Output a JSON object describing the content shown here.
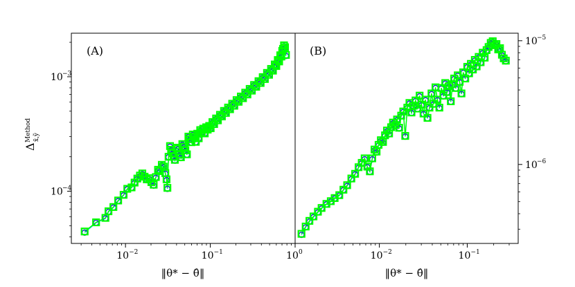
{
  "chart_data": [
    {
      "type": "line",
      "panel_label": "(A)",
      "xlabel": "‖θ* − θ̂‖",
      "ylabel": "Δ x̃,ỹ Method",
      "ylabel_main": "Δ",
      "ylabel_sup": "Method",
      "ylabel_sub": "x̃,ỹ",
      "xscale": "log",
      "yscale": "log",
      "xlim": [
        0.0023,
        1.0
      ],
      "ylim": [
        3.5e-05,
        0.0024
      ],
      "ytick_side": "left",
      "x_ticks": [
        {
          "value": 0.01,
          "base": "10",
          "exp": "−2"
        },
        {
          "value": 0.1,
          "base": "10",
          "exp": "−1"
        },
        {
          "value": 1.0,
          "base": "10",
          "exp": "0"
        }
      ],
      "y_ticks": [
        {
          "value": 0.0001,
          "base": "10",
          "exp": "−4"
        },
        {
          "value": 0.001,
          "base": "10",
          "exp": "−3"
        }
      ],
      "series": [
        {
          "marker": "circle",
          "line_color": "#00c8c8",
          "marker_color": "#1f3fbf",
          "x": [
            0.0033,
            0.0045,
            0.0058,
            0.0063,
            0.0072,
            0.0082,
            0.0095,
            0.0105,
            0.0118,
            0.0128,
            0.0138,
            0.0148,
            0.0158,
            0.0168,
            0.0178,
            0.019,
            0.0202,
            0.0215,
            0.0228,
            0.0242,
            0.0255,
            0.0268,
            0.0282,
            0.0295,
            0.0305,
            0.0312,
            0.0322,
            0.0335,
            0.0345,
            0.0355,
            0.0368,
            0.0382,
            0.0398,
            0.0415,
            0.0432,
            0.045,
            0.0468,
            0.0488,
            0.0508,
            0.053,
            0.0552,
            0.0575,
            0.0598,
            0.0622,
            0.0648,
            0.0675,
            0.0702,
            0.073,
            0.076,
            0.0792,
            0.0825,
            0.086,
            0.0895,
            0.0932,
            0.097,
            0.101,
            0.106,
            0.111,
            0.117,
            0.123,
            0.13,
            0.137,
            0.145,
            0.153,
            0.162,
            0.171,
            0.181,
            0.192,
            0.204,
            0.216,
            0.229,
            0.243,
            0.258,
            0.274,
            0.291,
            0.309,
            0.328,
            0.348,
            0.37,
            0.392,
            0.415,
            0.44,
            0.466,
            0.493,
            0.52,
            0.548,
            0.575,
            0.6,
            0.625,
            0.648,
            0.668,
            0.688,
            0.705,
            0.72,
            0.74,
            0.76,
            0.78
          ],
          "y": [
            4.35e-05,
            5.3e-05,
            5.78e-05,
            6.6e-05,
            7.2e-05,
            8.2e-05,
            9.2e-05,
            0.000104,
            0.000107,
            0.000118,
            0.000128,
            0.000135,
            0.000141,
            0.000132,
            0.000125,
            0.000128,
            0.000118,
            0.000112,
            0.000131,
            0.000152,
            0.000148,
            0.000168,
            0.000162,
            0.000142,
            0.000125,
            0.000105,
            0.000198,
            0.000245,
            0.000228,
            0.000212,
            0.000198,
            0.000185,
            0.000238,
            0.000232,
            0.000205,
            0.000195,
            0.000255,
            0.000242,
            0.000225,
            0.000208,
            0.000298,
            0.000282,
            0.000265,
            0.00031,
            0.000295,
            0.000268,
            0.000315,
            0.000288,
            0.000338,
            0.000325,
            0.000348,
            0.000318,
            0.000358,
            0.000342,
            0.000368,
            0.000352,
            0.000398,
            0.000382,
            0.000428,
            0.000412,
            0.00046,
            0.000445,
            0.000498,
            0.000478,
            0.000532,
            0.000515,
            0.000575,
            0.000552,
            0.000618,
            0.000598,
            0.000665,
            0.000642,
            0.000718,
            0.000692,
            0.000775,
            0.000748,
            0.000838,
            0.000808,
            0.000905,
            0.000872,
            0.000982,
            0.000945,
            0.00107,
            0.00103,
            0.00116,
            0.00112,
            0.00127,
            0.00123,
            0.00139,
            0.00135,
            0.00152,
            0.00148,
            0.00165,
            0.00172,
            0.00185,
            0.00178,
            0.00152
          ]
        },
        {
          "marker": "square",
          "line_color": "#00ff00",
          "marker_color": "#00ff00",
          "x": [
            0.0033,
            0.0045,
            0.0058,
            0.0063,
            0.0072,
            0.0082,
            0.0095,
            0.0105,
            0.0118,
            0.0128,
            0.0138,
            0.0148,
            0.0158,
            0.0168,
            0.0178,
            0.019,
            0.0202,
            0.0215,
            0.0228,
            0.0242,
            0.0255,
            0.0268,
            0.0282,
            0.0295,
            0.0305,
            0.0312,
            0.0322,
            0.0335,
            0.0345,
            0.0355,
            0.0368,
            0.0382,
            0.0398,
            0.0415,
            0.0432,
            0.045,
            0.0468,
            0.0488,
            0.0508,
            0.053,
            0.0552,
            0.0575,
            0.0598,
            0.0622,
            0.0648,
            0.0675,
            0.0702,
            0.073,
            0.076,
            0.0792,
            0.0825,
            0.086,
            0.0895,
            0.0932,
            0.097,
            0.101,
            0.106,
            0.111,
            0.117,
            0.123,
            0.13,
            0.137,
            0.145,
            0.153,
            0.162,
            0.171,
            0.181,
            0.192,
            0.204,
            0.216,
            0.229,
            0.243,
            0.258,
            0.274,
            0.291,
            0.309,
            0.328,
            0.348,
            0.37,
            0.392,
            0.415,
            0.44,
            0.466,
            0.493,
            0.52,
            0.548,
            0.575,
            0.6,
            0.625,
            0.648,
            0.668,
            0.688,
            0.705,
            0.72,
            0.74,
            0.76,
            0.78
          ],
          "y": [
            4.45e-05,
            5.35e-05,
            5.85e-05,
            6.68e-05,
            7.28e-05,
            8.3e-05,
            9.3e-05,
            0.000105,
            0.000108,
            0.000119,
            0.000129,
            0.000137,
            0.000143,
            0.000134,
            0.000127,
            0.00013,
            0.00012,
            0.000114,
            0.000133,
            0.000154,
            0.00015,
            0.00017,
            0.000164,
            0.000144,
            0.000127,
            0.000107,
            0.0002,
            0.000248,
            0.00023,
            0.000215,
            0.0002,
            0.000188,
            0.00024,
            0.000235,
            0.000208,
            0.000198,
            0.000258,
            0.000245,
            0.000228,
            0.00021,
            0.0003,
            0.000285,
            0.000268,
            0.000313,
            0.000298,
            0.00027,
            0.000318,
            0.00029,
            0.000342,
            0.000328,
            0.000352,
            0.00032,
            0.000362,
            0.000345,
            0.000372,
            0.000355,
            0.000402,
            0.000386,
            0.000432,
            0.000416,
            0.000465,
            0.00045,
            0.000503,
            0.000483,
            0.000538,
            0.00052,
            0.000581,
            0.000558,
            0.000625,
            0.000604,
            0.000672,
            0.000649,
            0.000726,
            0.0007,
            0.000783,
            0.000756,
            0.000847,
            0.000817,
            0.000915,
            0.000882,
            0.000992,
            0.000955,
            0.00108,
            0.00104,
            0.00117,
            0.00113,
            0.00128,
            0.00124,
            0.0014,
            0.00136,
            0.00154,
            0.0015,
            0.00168,
            0.00175,
            0.00188,
            0.00181,
            0.00155
          ]
        }
      ]
    },
    {
      "type": "line",
      "panel_label": "(B)",
      "xlabel": "‖θ* − θ̂‖",
      "xscale": "log",
      "yscale": "log",
      "xlim": [
        0.0011,
        0.38
      ],
      "ylim": [
        2.3e-07,
        1.15e-05
      ],
      "ytick_side": "right",
      "x_ticks": [
        {
          "value": 0.01,
          "base": "10",
          "exp": "−2"
        },
        {
          "value": 0.1,
          "base": "10",
          "exp": "−1"
        }
      ],
      "y_ticks": [
        {
          "value": 1e-06,
          "base": "10",
          "exp": "−6"
        },
        {
          "value": 1e-05,
          "base": "10",
          "exp": "−5"
        }
      ],
      "series": [
        {
          "marker": "circle",
          "line_color": "#00c8c8",
          "marker_color": "#1f3fbf",
          "x": [
            0.0013,
            0.00145,
            0.0016,
            0.00178,
            0.002,
            0.0022,
            0.0025,
            0.0028,
            0.0031,
            0.0035,
            0.0039,
            0.0043,
            0.0048,
            0.0053,
            0.0058,
            0.0063,
            0.0068,
            0.0073,
            0.0078,
            0.0083,
            0.0088,
            0.0093,
            0.0098,
            0.0104,
            0.011,
            0.0116,
            0.0122,
            0.0129,
            0.0136,
            0.0143,
            0.0151,
            0.0159,
            0.0168,
            0.0177,
            0.0187,
            0.0197,
            0.0208,
            0.022,
            0.0232,
            0.0245,
            0.0258,
            0.0272,
            0.0287,
            0.0302,
            0.0318,
            0.0335,
            0.0353,
            0.0372,
            0.0392,
            0.0413,
            0.0435,
            0.0458,
            0.0482,
            0.0508,
            0.0535,
            0.0562,
            0.059,
            0.062,
            0.065,
            0.068,
            0.071,
            0.074,
            0.078,
            0.082,
            0.086,
            0.09,
            0.095,
            0.1,
            0.105,
            0.11,
            0.116,
            0.122,
            0.128,
            0.135,
            0.142,
            0.15,
            0.158,
            0.166,
            0.175,
            0.185,
            0.195,
            0.205,
            0.215,
            0.225,
            0.236,
            0.248,
            0.26,
            0.275
          ],
          "y": [
            2.7e-07,
            3.1e-07,
            3.45e-07,
            3.75e-07,
            4.1e-07,
            4.4e-07,
            4.75e-07,
            5e-07,
            5.3e-07,
            5.6e-07,
            6.2e-07,
            6.7e-07,
            7.6e-07,
            8.3e-07,
            9.4e-07,
            1.02e-06,
            1.1e-06,
            9.5e-07,
            8.7e-07,
            1.1e-06,
            1.3e-06,
            1.25e-06,
            1.42e-06,
            1.55e-06,
            1.5e-06,
            1.7e-06,
            1.85e-06,
            1.75e-06,
            1.98e-06,
            2.15e-06,
            2.05e-06,
            2.28e-06,
            1.95e-06,
            2.45e-06,
            2.65e-06,
            1.68e-06,
            2.85e-06,
            3.1e-06,
            2.6e-06,
            2.95e-06,
            3.25e-06,
            2.8e-06,
            3.55e-06,
            3e-06,
            2.55e-06,
            3.3e-06,
            2.35e-06,
            2.85e-06,
            3.7e-06,
            3.05e-06,
            4.15e-06,
            3.3e-06,
            2.85e-06,
            4.1e-06,
            3.55e-06,
            4.5e-06,
            3.8e-06,
            4.25e-06,
            3.2e-06,
            4.4e-06,
            4.9e-06,
            4.1e-06,
            5.2e-06,
            4.6e-06,
            3.7e-06,
            5.5e-06,
            4.9e-06,
            6.1e-06,
            5.4e-06,
            6.4e-06,
            5.8e-06,
            6.9e-06,
            6.1e-06,
            7.3e-06,
            6.6e-06,
            7.9e-06,
            7.2e-06,
            8.3e-06,
            8.8e-06,
            9.5e-06,
            9.8e-06,
            9.1e-06,
            9.3e-06,
            8.4e-06,
            8.6e-06,
            7.6e-06,
            7.1e-06,
            6.8e-06
          ]
        },
        {
          "marker": "square",
          "line_color": "#00ff00",
          "marker_color": "#00ff00",
          "x": [
            0.0013,
            0.00145,
            0.0016,
            0.00178,
            0.002,
            0.0022,
            0.0025,
            0.0028,
            0.0031,
            0.0035,
            0.0039,
            0.0043,
            0.0048,
            0.0053,
            0.0058,
            0.0063,
            0.0068,
            0.0073,
            0.0078,
            0.0083,
            0.0088,
            0.0093,
            0.0098,
            0.0104,
            0.011,
            0.0116,
            0.0122,
            0.0129,
            0.0136,
            0.0143,
            0.0151,
            0.0159,
            0.0168,
            0.0177,
            0.0187,
            0.0197,
            0.0208,
            0.022,
            0.0232,
            0.0245,
            0.0258,
            0.0272,
            0.0287,
            0.0302,
            0.0318,
            0.0335,
            0.0353,
            0.0372,
            0.0392,
            0.0413,
            0.0435,
            0.0458,
            0.0482,
            0.0508,
            0.0535,
            0.0562,
            0.059,
            0.062,
            0.065,
            0.068,
            0.071,
            0.074,
            0.078,
            0.082,
            0.086,
            0.09,
            0.095,
            0.1,
            0.105,
            0.11,
            0.116,
            0.122,
            0.128,
            0.135,
            0.142,
            0.15,
            0.158,
            0.166,
            0.175,
            0.185,
            0.195,
            0.205,
            0.215,
            0.225,
            0.236,
            0.248,
            0.26,
            0.275
          ],
          "y": [
            2.75e-07,
            3.15e-07,
            3.5e-07,
            3.8e-07,
            4.15e-07,
            4.45e-07,
            4.8e-07,
            5.05e-07,
            5.35e-07,
            5.65e-07,
            6.25e-07,
            6.8e-07,
            7.7e-07,
            8.4e-07,
            9.5e-07,
            1.03e-06,
            1.12e-06,
            9.6e-07,
            8.8e-07,
            1.12e-06,
            1.32e-06,
            1.27e-06,
            1.44e-06,
            1.57e-06,
            1.52e-06,
            1.72e-06,
            1.88e-06,
            1.78e-06,
            2e-06,
            2.18e-06,
            2.08e-06,
            2.31e-06,
            1.98e-06,
            2.48e-06,
            2.68e-06,
            1.7e-06,
            2.88e-06,
            3.14e-06,
            2.63e-06,
            2.98e-06,
            3.29e-06,
            2.83e-06,
            3.6e-06,
            3.04e-06,
            2.58e-06,
            3.34e-06,
            2.38e-06,
            2.88e-06,
            3.75e-06,
            3.09e-06,
            4.2e-06,
            3.34e-06,
            2.88e-06,
            4.15e-06,
            3.6e-06,
            4.55e-06,
            3.85e-06,
            4.3e-06,
            3.24e-06,
            4.45e-06,
            4.95e-06,
            4.15e-06,
            5.25e-06,
            4.65e-06,
            3.75e-06,
            5.55e-06,
            4.95e-06,
            6.15e-06,
            5.45e-06,
            6.5e-06,
            5.85e-06,
            7e-06,
            6.2e-06,
            7.4e-06,
            6.7e-06,
            8e-06,
            7.3e-06,
            8.4e-06,
            8.9e-06,
            9.6e-06,
            9.9e-06,
            9.2e-06,
            9.4e-06,
            8.5e-06,
            8.7e-06,
            7.7e-06,
            7.2e-06,
            6.9e-06
          ]
        }
      ]
    }
  ]
}
